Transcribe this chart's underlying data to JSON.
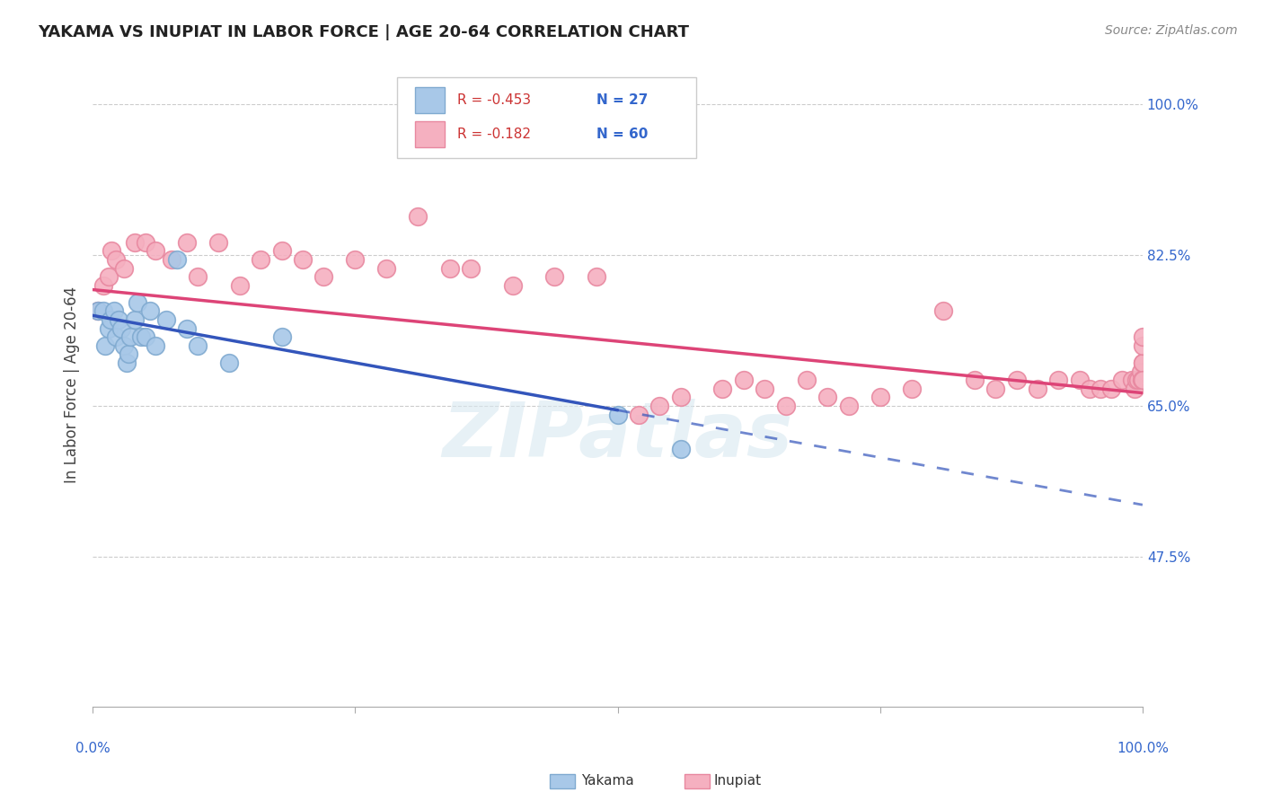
{
  "title": "YAKAMA VS INUPIAT IN LABOR FORCE | AGE 20-64 CORRELATION CHART",
  "source": "Source: ZipAtlas.com",
  "ylabel": "In Labor Force | Age 20-64",
  "ylabel_right_labels": [
    "100.0%",
    "82.5%",
    "65.0%",
    "47.5%"
  ],
  "ylabel_right_values": [
    1.0,
    0.825,
    0.65,
    0.475
  ],
  "xmin": 0.0,
  "xmax": 1.0,
  "ymin": 0.3,
  "ymax": 1.05,
  "legend_r1": "R = -0.453",
  "legend_n1": "N = 27",
  "legend_r2": "R = -0.182",
  "legend_n2": "N = 60",
  "yakama_color": "#a8c8e8",
  "inupiat_color": "#f5b0c0",
  "yakama_edge": "#80aad0",
  "inupiat_edge": "#e888a0",
  "trend_yakama_color": "#3355bb",
  "trend_inupiat_color": "#dd4477",
  "watermark": "ZIPatlas",
  "yakama_x": [
    0.005,
    0.01,
    0.012,
    0.015,
    0.017,
    0.02,
    0.022,
    0.025,
    0.027,
    0.03,
    0.032,
    0.034,
    0.036,
    0.04,
    0.043,
    0.046,
    0.05,
    0.055,
    0.06,
    0.07,
    0.08,
    0.09,
    0.1,
    0.13,
    0.18,
    0.5,
    0.56
  ],
  "yakama_y": [
    0.76,
    0.76,
    0.72,
    0.74,
    0.75,
    0.76,
    0.73,
    0.75,
    0.74,
    0.72,
    0.7,
    0.71,
    0.73,
    0.75,
    0.77,
    0.73,
    0.73,
    0.76,
    0.72,
    0.75,
    0.82,
    0.74,
    0.72,
    0.7,
    0.73,
    0.64,
    0.6
  ],
  "inupiat_x": [
    0.005,
    0.01,
    0.015,
    0.018,
    0.022,
    0.03,
    0.04,
    0.05,
    0.06,
    0.075,
    0.09,
    0.1,
    0.12,
    0.14,
    0.16,
    0.18,
    0.2,
    0.22,
    0.25,
    0.28,
    0.31,
    0.34,
    0.36,
    0.4,
    0.44,
    0.48,
    0.52,
    0.54,
    0.56,
    0.6,
    0.62,
    0.64,
    0.66,
    0.68,
    0.7,
    0.72,
    0.75,
    0.78,
    0.81,
    0.84,
    0.86,
    0.88,
    0.9,
    0.92,
    0.94,
    0.95,
    0.96,
    0.97,
    0.98,
    0.99,
    0.992,
    0.994,
    0.996,
    0.998,
    0.999,
    1.0,
    1.0,
    1.0,
    1.0,
    1.0
  ],
  "inupiat_y": [
    0.76,
    0.79,
    0.8,
    0.83,
    0.82,
    0.81,
    0.84,
    0.84,
    0.83,
    0.82,
    0.84,
    0.8,
    0.84,
    0.79,
    0.82,
    0.83,
    0.82,
    0.8,
    0.82,
    0.81,
    0.87,
    0.81,
    0.81,
    0.79,
    0.8,
    0.8,
    0.64,
    0.65,
    0.66,
    0.67,
    0.68,
    0.67,
    0.65,
    0.68,
    0.66,
    0.65,
    0.66,
    0.67,
    0.76,
    0.68,
    0.67,
    0.68,
    0.67,
    0.68,
    0.68,
    0.67,
    0.67,
    0.67,
    0.68,
    0.68,
    0.67,
    0.68,
    0.68,
    0.69,
    0.68,
    0.7,
    0.7,
    0.68,
    0.72,
    0.73
  ],
  "yakama_trend_x0": 0.0,
  "yakama_trend_y0": 0.755,
  "yakama_trend_x1": 0.5,
  "yakama_trend_y1": 0.645,
  "inupiat_trend_x0": 0.0,
  "inupiat_trend_y0": 0.785,
  "inupiat_trend_x1": 1.0,
  "inupiat_trend_y1": 0.665
}
